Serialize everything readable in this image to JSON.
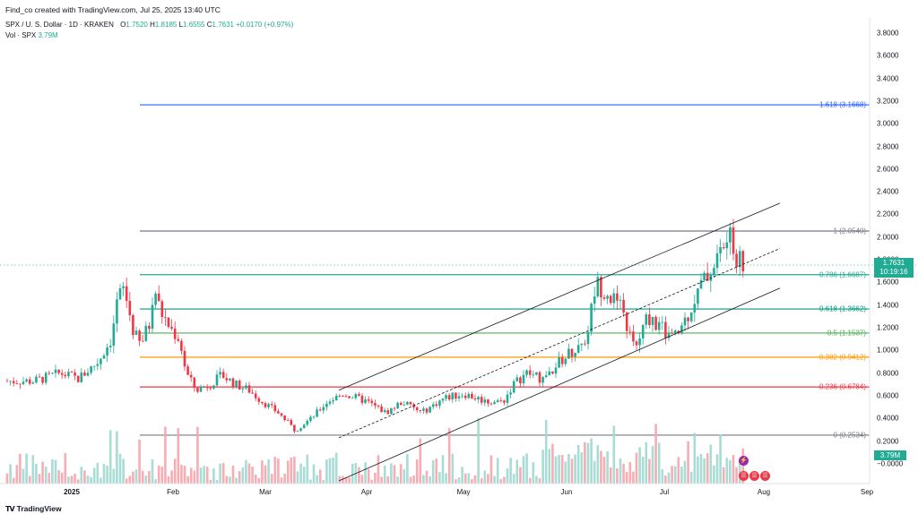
{
  "header": {
    "credit": "Find_co created with TradingView.com, Jul 25, 2025 13:40 UTC"
  },
  "legend": {
    "symbol": "SPX / U. S. Dollar · 1D · KRAKEN",
    "open_label": "O",
    "open": "1.7520",
    "high_label": "H",
    "high": "1.8185",
    "low_label": "L",
    "low": "1.6555",
    "close_label": "C",
    "close": "1.7631",
    "change": "+0.0170 (+0.97%)",
    "vol_label": "Vol · SPX",
    "vol": "3.79M",
    "up_color": "#22ab94",
    "down_color": "#f23645"
  },
  "price_axis": {
    "ticks": [
      "3.8000",
      "3.6000",
      "3.4000",
      "3.2000",
      "3.0000",
      "2.8000",
      "2.6000",
      "2.4000",
      "2.2000",
      "2.0000",
      "1.8000",
      "1.6000",
      "1.4000",
      "1.2000",
      "1.0000",
      "0.8000",
      "0.6000",
      "0.4000",
      "0.2000",
      "−0.0000"
    ],
    "current_price": "1.7631",
    "countdown": "10:19:16",
    "volume_tag": "3.79M"
  },
  "time_axis": {
    "ticks": [
      "2025",
      "Feb",
      "Mar",
      "Apr",
      "May",
      "Jun",
      "Jul",
      "Aug",
      "Sep"
    ]
  },
  "fib_levels": [
    {
      "label": "1.618 (3.1668)",
      "value": 3.1668,
      "color": "#2962ff"
    },
    {
      "label": "1 (2.0540)",
      "value": 2.054,
      "color": "#787b86"
    },
    {
      "label": "0.786 (1.6687)",
      "value": 1.6687,
      "color": "#22ab94"
    },
    {
      "label": "0.618 (1.3662)",
      "value": 1.3662,
      "color": "#089981"
    },
    {
      "label": "0.5 (1.1537)",
      "value": 1.1537,
      "color": "#4caf50"
    },
    {
      "label": "0.382 (0.9412)",
      "value": 0.9412,
      "color": "#ff9800"
    },
    {
      "label": "0.236 (0.6784)",
      "value": 0.6784,
      "color": "#f23645"
    },
    {
      "label": "0 (0.2534)",
      "value": 0.2534,
      "color": "#787b86"
    }
  ],
  "chart_data": {
    "type": "candlestick",
    "symbol": "SPX / U. S. Dollar",
    "interval": "1D",
    "ylim": [
      0,
      3.9
    ],
    "price_series": [
      {
        "x": "Dec 20",
        "y": 0.73
      },
      {
        "x": "Dec 28",
        "y": 0.8
      },
      {
        "x": "Jan 3",
        "y": 0.75
      },
      {
        "x": "Jan 9",
        "y": 0.9
      },
      {
        "x": "Jan 13",
        "y": 1.1
      },
      {
        "x": "Jan 15",
        "y": 1.45
      },
      {
        "x": "Jan 17",
        "y": 1.55
      },
      {
        "x": "Jan 20",
        "y": 1.15
      },
      {
        "x": "Jan 22",
        "y": 1.05
      },
      {
        "x": "Jan 25",
        "y": 1.25
      },
      {
        "x": "Jan 26",
        "y": 1.6
      },
      {
        "x": "Jan 28",
        "y": 1.35
      },
      {
        "x": "Jan 31",
        "y": 1.2
      },
      {
        "x": "Feb 3",
        "y": 1.1
      },
      {
        "x": "Feb 5",
        "y": 0.8
      },
      {
        "x": "Feb 8",
        "y": 0.65
      },
      {
        "x": "Feb 12",
        "y": 0.7
      },
      {
        "x": "Feb 16",
        "y": 0.78
      },
      {
        "x": "Feb 20",
        "y": 0.7
      },
      {
        "x": "Feb 24",
        "y": 0.65
      },
      {
        "x": "Feb 28",
        "y": 0.55
      },
      {
        "x": "Mar 5",
        "y": 0.45
      },
      {
        "x": "Mar 10",
        "y": 0.3
      },
      {
        "x": "Mar 15",
        "y": 0.4
      },
      {
        "x": "Mar 20",
        "y": 0.55
      },
      {
        "x": "Mar 25",
        "y": 0.62
      },
      {
        "x": "Apr 1",
        "y": 0.55
      },
      {
        "x": "Apr 7",
        "y": 0.45
      },
      {
        "x": "Apr 12",
        "y": 0.55
      },
      {
        "x": "Apr 18",
        "y": 0.45
      },
      {
        "x": "Apr 25",
        "y": 0.58
      },
      {
        "x": "May 1",
        "y": 0.62
      },
      {
        "x": "May 8",
        "y": 0.55
      },
      {
        "x": "May 13",
        "y": 0.55
      },
      {
        "x": "May 16",
        "y": 0.7
      },
      {
        "x": "May 20",
        "y": 0.8
      },
      {
        "x": "May 25",
        "y": 0.75
      },
      {
        "x": "May 30",
        "y": 0.9
      },
      {
        "x": "Jun 3",
        "y": 1.0
      },
      {
        "x": "Jun 7",
        "y": 1.1
      },
      {
        "x": "Jun 10",
        "y": 1.6
      },
      {
        "x": "Jun 14",
        "y": 1.5
      },
      {
        "x": "Jun 18",
        "y": 1.35
      },
      {
        "x": "Jun 22",
        "y": 1.0
      },
      {
        "x": "Jun 26",
        "y": 1.3
      },
      {
        "x": "Jun 30",
        "y": 1.2
      },
      {
        "x": "Jul 4",
        "y": 1.1
      },
      {
        "x": "Jul 8",
        "y": 1.3
      },
      {
        "x": "Jul 12",
        "y": 1.55
      },
      {
        "x": "Jul 16",
        "y": 1.75
      },
      {
        "x": "Jul 19",
        "y": 1.9
      },
      {
        "x": "Jul 21",
        "y": 2.0
      },
      {
        "x": "Jul 23",
        "y": 1.85
      },
      {
        "x": "Jul 25",
        "y": 1.7631
      }
    ],
    "channel": {
      "upper": [
        {
          "x": "Mar 29",
          "y": 0.65
        },
        {
          "x": "Aug 1",
          "y": 2.3
        }
      ],
      "middle": [
        {
          "x": "Mar 29",
          "y": 0.23
        },
        {
          "x": "Aug 1",
          "y": 1.9
        }
      ],
      "lower": [
        {
          "x": "Mar 29",
          "y": -0.15
        },
        {
          "x": "Aug 1",
          "y": 1.55
        }
      ]
    },
    "volume": {
      "last": "3.79M"
    }
  }
}
